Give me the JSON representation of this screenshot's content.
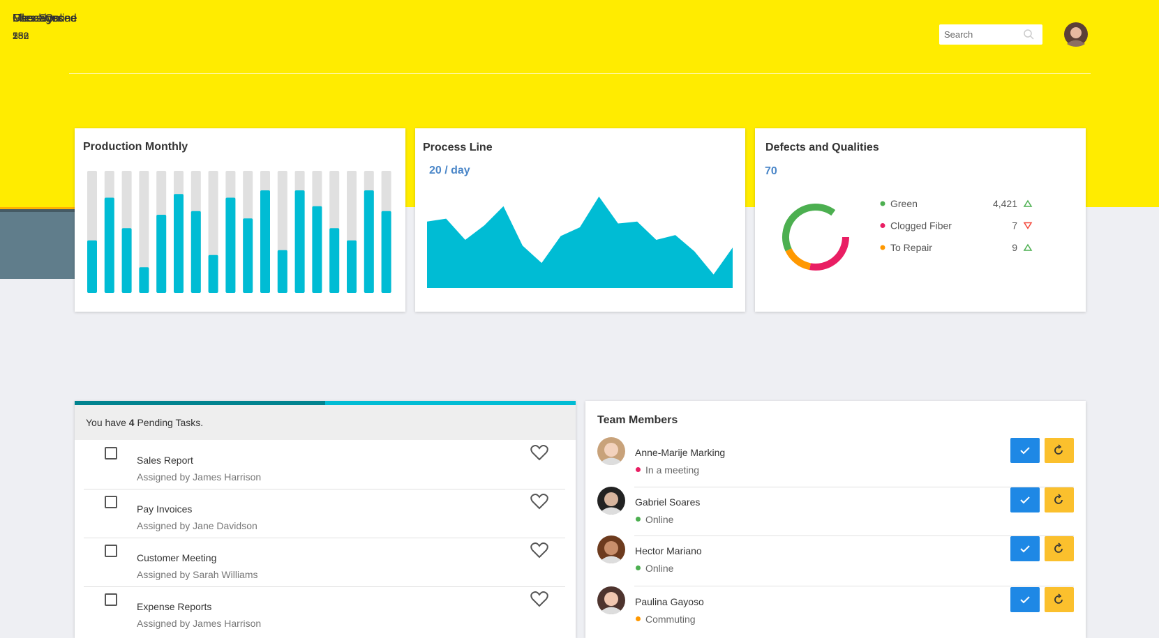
{
  "header": {
    "search_placeholder": "Search"
  },
  "production_monthly": {
    "title": "Production Monthly",
    "values": [
      43,
      78,
      53,
      21,
      64,
      81,
      67,
      31,
      78,
      61,
      84,
      35,
      84,
      71,
      53,
      43,
      84,
      67
    ],
    "ylim": [
      0,
      100
    ],
    "color": "#00bcd4",
    "track_color": "#e0e0e0"
  },
  "process_line": {
    "title": "Process Line",
    "rate": "20 / day",
    "values": [
      69,
      72,
      50,
      65,
      85,
      44,
      26,
      54,
      63,
      95,
      67,
      69,
      50,
      55,
      38,
      14,
      42
    ],
    "ylim": [
      0,
      100
    ],
    "color": "#00bcd4"
  },
  "defects": {
    "title": "Defects and Qualities",
    "total": 70,
    "donut_range": [
      0,
      100
    ],
    "legend": [
      {
        "name": "Green",
        "value": 4421,
        "value_label": "4,421",
        "trend": "up",
        "color": "#4caf50",
        "share": 42
      },
      {
        "name": "Clogged Fiber",
        "value": 7,
        "trend": "down",
        "color": "#e91e63",
        "share": 28
      },
      {
        "name": "To Repair",
        "value": 9,
        "trend": "up",
        "color": "#ff9800",
        "share": 15
      }
    ]
  },
  "stats": [
    {
      "title": "Messages",
      "value": 152,
      "color": "#00bcd4",
      "accent": "#0097a7",
      "icon": "mail"
    },
    {
      "title": "Checkins",
      "value": 532,
      "color": "#e91e63",
      "accent": "#c2185b",
      "icon": "send"
    },
    {
      "title": "Files Synced",
      "value": 28,
      "color": "#ffb300",
      "accent": "#ff8f00",
      "icon": "download"
    },
    {
      "title": "Users Online",
      "value": 256,
      "color": "#607d8b",
      "accent": "#455a64",
      "icon": "user"
    }
  ],
  "tasks": {
    "intro_prefix": "You have",
    "count": 4,
    "intro_suffix": "Pending Tasks.",
    "items": [
      {
        "title": "Sales Report",
        "assigned": "Assigned by James Harrison"
      },
      {
        "title": "Pay Invoices",
        "assigned": "Assigned by Jane Davidson"
      },
      {
        "title": "Customer Meeting",
        "assigned": "Assigned by Sarah Williams"
      },
      {
        "title": "Expense Reports",
        "assigned": "Assigned by James Harrison"
      }
    ]
  },
  "team": {
    "title": "Team Members",
    "members": [
      {
        "name": "Anne-Marije Marking",
        "status": "In a meeting",
        "status_color": "#e91e63"
      },
      {
        "name": "Gabriel Soares",
        "status": "Online",
        "status_color": "#4caf50"
      },
      {
        "name": "Hector Mariano",
        "status": "Online",
        "status_color": "#4caf50"
      },
      {
        "name": "Paulina Gayoso",
        "status": "Commuting",
        "status_color": "#ff9800"
      }
    ]
  }
}
